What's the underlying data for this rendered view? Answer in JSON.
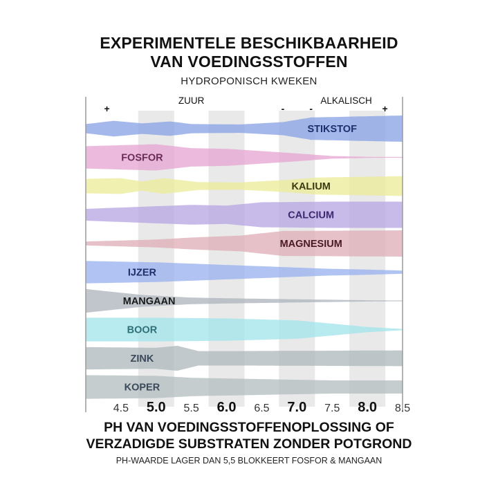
{
  "chart_data": {
    "type": "area",
    "title": "EXPERIMENTELE BESCHIKBAARHEID VAN VOEDINGSSTOFFEN",
    "title_lines": [
      "EXPERIMENTELE BESCHIKBAARHEID",
      "VAN VOEDINGSSTOFFEN"
    ],
    "subtitle": "HYDROPONISCH KWEKEN",
    "xlabel_lines": [
      "PH VAN VOEDINGSSTOFFENOPLOSSING OF",
      "VERZADIGDE SUBSTRATEN ZONDER POTGROND"
    ],
    "note": "PH-WAARDE LAGER DAN 5,5 BLOKKEERT FOSFOR & MANGAAN",
    "xlim": [
      4.0,
      8.5
    ],
    "ticks": [
      {
        "value": 4.5,
        "label": "4.5",
        "major": false
      },
      {
        "value": 5.0,
        "label": "5.0",
        "major": true
      },
      {
        "value": 5.5,
        "label": "5.5",
        "major": false
      },
      {
        "value": 6.0,
        "label": "6.0",
        "major": true
      },
      {
        "value": 6.5,
        "label": "6.5",
        "major": false
      },
      {
        "value": 7.0,
        "label": "7.0",
        "major": true
      },
      {
        "value": 7.5,
        "label": "7.5",
        "major": false
      },
      {
        "value": 8.0,
        "label": "8.0",
        "major": true
      },
      {
        "value": 8.5,
        "label": "8.5",
        "major": false
      }
    ],
    "annotations": [
      {
        "text": "+",
        "x": 4.3
      },
      {
        "text": "ZUUR",
        "x": 5.5
      },
      {
        "text": "-",
        "x": 6.8
      },
      {
        "text": "-",
        "x": 7.2
      },
      {
        "text": "ALKALISCH",
        "x": 7.7
      },
      {
        "text": "+",
        "x": 8.25
      }
    ],
    "series": [
      {
        "name": "STIKSTOF",
        "color": "#8aa4e6",
        "label_color": "#1f2f6e",
        "label_x": 7.5,
        "points": [
          [
            4.0,
            0.35
          ],
          [
            4.4,
            0.6
          ],
          [
            4.8,
            0.4
          ],
          [
            5.2,
            0.55
          ],
          [
            5.5,
            0.35
          ],
          [
            6.2,
            0.32
          ],
          [
            6.8,
            0.5
          ],
          [
            7.2,
            0.85
          ],
          [
            8.5,
            1.0
          ]
        ]
      },
      {
        "name": "FOSFOR",
        "color": "#e7a6d2",
        "label_color": "#6b2d57",
        "label_x": 4.8,
        "points": [
          [
            4.0,
            0.85
          ],
          [
            5.0,
            1.0
          ],
          [
            5.5,
            0.7
          ],
          [
            6.0,
            0.65
          ],
          [
            7.0,
            0.3
          ],
          [
            7.5,
            0.1
          ],
          [
            8.1,
            0.03
          ],
          [
            8.5,
            0.02
          ]
        ]
      },
      {
        "name": "KALIUM",
        "color": "#ecec9a",
        "label_color": "#3a3a10",
        "label_x": 7.2,
        "points": [
          [
            4.0,
            0.55
          ],
          [
            4.5,
            0.6
          ],
          [
            4.8,
            0.35
          ],
          [
            5.1,
            0.6
          ],
          [
            5.6,
            0.3
          ],
          [
            6.2,
            0.28
          ],
          [
            6.8,
            0.45
          ],
          [
            7.3,
            0.65
          ],
          [
            8.5,
            0.75
          ]
        ]
      },
      {
        "name": "CALCIUM",
        "color": "#b9a8e4",
        "label_color": "#3d2870",
        "label_x": 7.2,
        "points": [
          [
            4.0,
            0.45
          ],
          [
            5.5,
            0.75
          ],
          [
            6.0,
            0.7
          ],
          [
            6.5,
            0.95
          ],
          [
            7.5,
            1.0
          ],
          [
            8.5,
            1.0
          ]
        ]
      },
      {
        "name": "MAGNESIUM",
        "color": "#e0b0b8",
        "label_color": "#4a1a22",
        "label_x": 7.2,
        "points": [
          [
            4.0,
            0.15
          ],
          [
            5.0,
            0.3
          ],
          [
            5.5,
            0.45
          ],
          [
            6.2,
            0.6
          ],
          [
            6.8,
            0.95
          ],
          [
            8.5,
            1.0
          ]
        ]
      },
      {
        "name": "IJZER",
        "color": "#9ab2ee",
        "label_color": "#1f2f6e",
        "label_x": 4.8,
        "points": [
          [
            4.0,
            0.85
          ],
          [
            5.0,
            0.75
          ],
          [
            6.0,
            0.55
          ],
          [
            7.0,
            0.35
          ],
          [
            7.5,
            0.25
          ],
          [
            8.0,
            0.2
          ],
          [
            8.5,
            0.12
          ]
        ]
      },
      {
        "name": "MANGAAN",
        "color": "#b0b6be",
        "label_color": "#1a1a1a",
        "label_x": 4.9,
        "points": [
          [
            4.0,
            0.9
          ],
          [
            4.8,
            0.45
          ],
          [
            5.5,
            0.25
          ],
          [
            6.0,
            0.2
          ],
          [
            7.0,
            0.12
          ],
          [
            8.0,
            0.05
          ],
          [
            8.5,
            0.02
          ]
        ]
      },
      {
        "name": "BOOR",
        "color": "#a4e6ec",
        "label_color": "#2f6f78",
        "label_x": 4.8,
        "points": [
          [
            4.0,
            0.9
          ],
          [
            5.0,
            0.9
          ],
          [
            6.0,
            0.85
          ],
          [
            7.0,
            0.7
          ],
          [
            7.5,
            0.45
          ],
          [
            8.0,
            0.2
          ],
          [
            8.5,
            0.05
          ]
        ]
      },
      {
        "name": "ZINK",
        "color": "#b0babe",
        "label_color": "#3a4a5a",
        "label_x": 4.8,
        "points": [
          [
            4.0,
            0.85
          ],
          [
            5.0,
            0.8
          ],
          [
            5.3,
            0.95
          ],
          [
            5.6,
            0.55
          ],
          [
            6.2,
            0.55
          ],
          [
            8.5,
            0.6
          ]
        ]
      },
      {
        "name": "KOPER",
        "color": "#b5bfc2",
        "label_color": "#3a4a5a",
        "label_x": 4.8,
        "points": [
          [
            4.0,
            0.9
          ],
          [
            5.0,
            0.85
          ],
          [
            5.5,
            0.7
          ],
          [
            6.5,
            0.6
          ],
          [
            7.5,
            0.5
          ],
          [
            8.5,
            0.5
          ]
        ]
      }
    ]
  }
}
